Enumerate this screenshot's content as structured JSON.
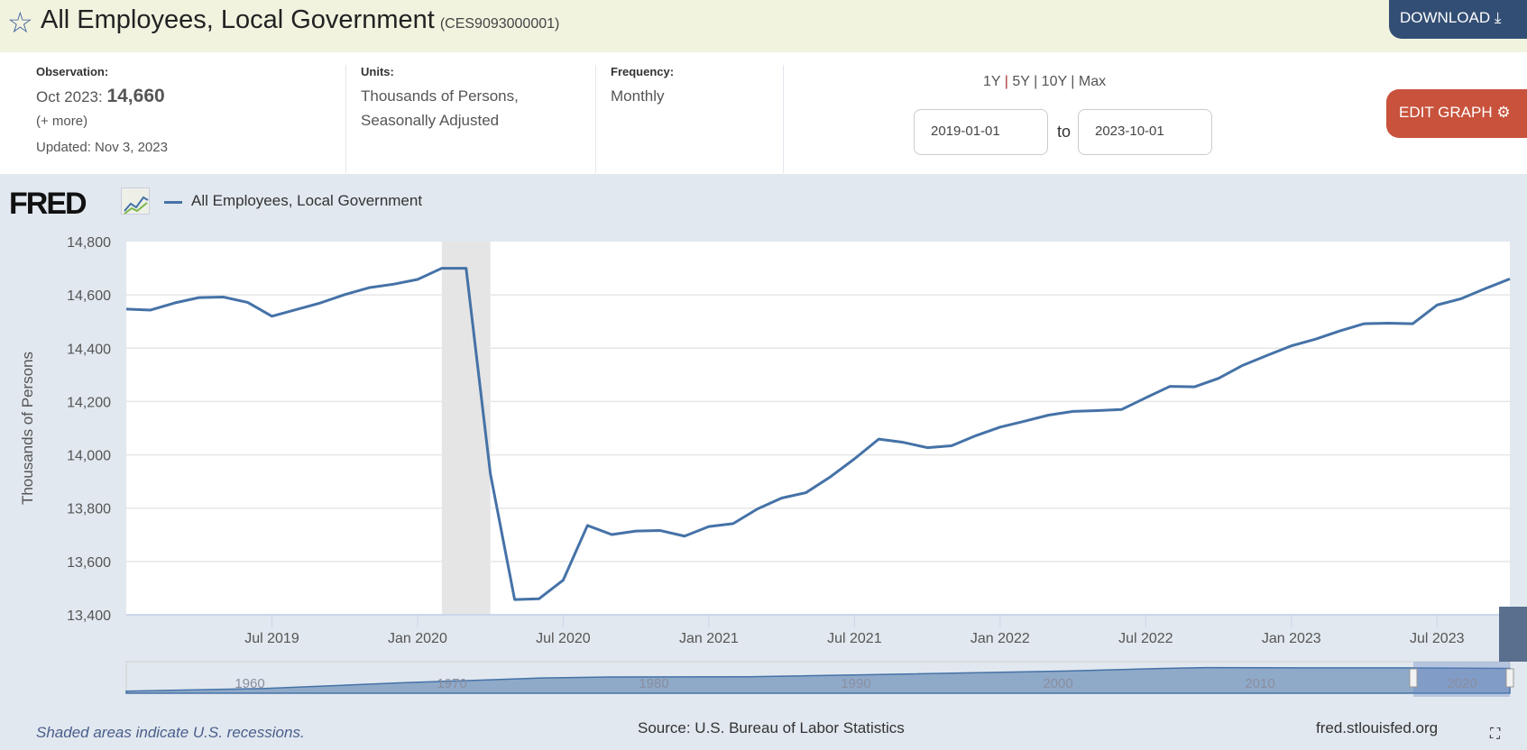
{
  "header": {
    "title": "All Employees, Local Government",
    "series_id": "(CES9093000001)",
    "download_label": "DOWNLOAD",
    "star_icon": "star-icon",
    "download_icon": "download-icon"
  },
  "info": {
    "observation_label": "Observation:",
    "observation_date": "Oct 2023:",
    "observation_value": "14,660",
    "more": "(+ more)",
    "updated": "Updated: Nov 3, 2023",
    "units_label": "Units:",
    "units_line1": "Thousands of Persons,",
    "units_line2": "Seasonally Adjusted",
    "frequency_label": "Frequency:",
    "frequency": "Monthly"
  },
  "range": {
    "links": [
      "1Y",
      "5Y",
      "10Y",
      "Max"
    ],
    "start": "2019-01-01",
    "to": "to",
    "end": "2023-10-01",
    "edit_label": "EDIT GRAPH"
  },
  "logo": "FRED",
  "footer": {
    "recession_note": "Shaded areas indicate U.S. recessions.",
    "source": "Source: U.S. Bureau of Labor Statistics",
    "site": "fred.stlouisfed.org"
  },
  "colors": {
    "line": "#4572a7",
    "recession": "#e5e5e5",
    "download": "#334e74",
    "edit": "#c8523c"
  },
  "chart_data": {
    "type": "line",
    "title": "All Employees, Local Government",
    "ylabel": "Thousands of Persons",
    "xlabel": "",
    "ylim": [
      13400,
      14800
    ],
    "yticks": [
      13400,
      13600,
      13800,
      14000,
      14200,
      14400,
      14600,
      14800
    ],
    "ytick_labels": [
      "13,400",
      "13,600",
      "13,800",
      "14,000",
      "14,200",
      "14,400",
      "14,600",
      "14,800"
    ],
    "xticks": [
      {
        "index": 6,
        "label": "Jul 2019"
      },
      {
        "index": 12,
        "label": "Jan 2020"
      },
      {
        "index": 18,
        "label": "Jul 2020"
      },
      {
        "index": 24,
        "label": "Jan 2021"
      },
      {
        "index": 30,
        "label": "Jul 2021"
      },
      {
        "index": 36,
        "label": "Jan 2022"
      },
      {
        "index": 42,
        "label": "Jul 2022"
      },
      {
        "index": 48,
        "label": "Jan 2023"
      },
      {
        "index": 54,
        "label": "Jul 2023"
      }
    ],
    "start": "2019-01",
    "end": "2023-10",
    "recession": {
      "from_index": 13,
      "to_index": 15
    },
    "grid": true,
    "legend": "top-left",
    "series": [
      {
        "name": "All Employees, Local Government",
        "values": [
          14547,
          14543,
          14570,
          14590,
          14592,
          14572,
          14520,
          14545,
          14570,
          14601,
          14627,
          14640,
          14658,
          14700,
          14700,
          13929,
          13457,
          13460,
          13530,
          13735,
          13701,
          13714,
          13716,
          13695,
          13731,
          13742,
          13797,
          13838,
          13858,
          13917,
          13985,
          14059,
          14047,
          14027,
          14034,
          14072,
          14104,
          14126,
          14149,
          14163,
          14166,
          14170,
          14214,
          14257,
          14255,
          14287,
          14336,
          14373,
          14409,
          14434,
          14465,
          14492,
          14494,
          14492,
          14562,
          14586,
          14624,
          14660
        ]
      }
    ],
    "navigator_labels": [
      "1960",
      "1970",
      "1980",
      "1990",
      "2000",
      "2010",
      "2020"
    ]
  }
}
